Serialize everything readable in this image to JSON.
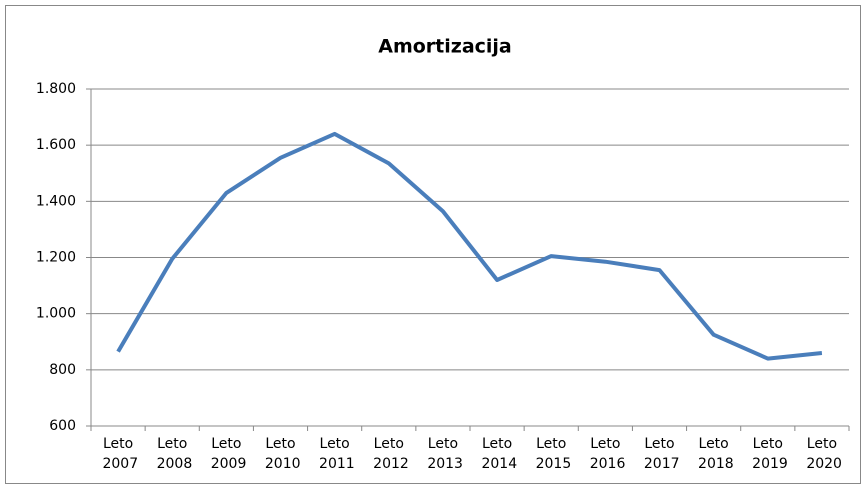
{
  "chart_data": {
    "type": "line",
    "title": "Amortizacija",
    "categories": [
      "Leto 2007",
      "Leto 2008",
      "Leto 2009",
      "Leto 2010",
      "Leto 2011",
      "Leto 2012",
      "Leto 2013",
      "Leto 2014",
      "Leto 2015",
      "Leto 2016",
      "Leto 2017",
      "Leto 2018",
      "Leto 2019",
      "Leto 2020"
    ],
    "values": [
      865,
      1195,
      1430,
      1555,
      1640,
      1535,
      1365,
      1120,
      1205,
      1185,
      1155,
      925,
      840,
      860
    ],
    "color": "#4a7ebb",
    "ylim": [
      600,
      1800
    ],
    "yticks": [
      600,
      800,
      {
        "value": 1000,
        "label": "1.000"
      },
      {
        "value": 1200,
        "label": "1.200"
      },
      {
        "value": 1400,
        "label": "1.400"
      },
      {
        "value": 1600,
        "label": "1.600"
      },
      {
        "value": 1800,
        "label": "1.800"
      }
    ],
    "grid": true
  }
}
